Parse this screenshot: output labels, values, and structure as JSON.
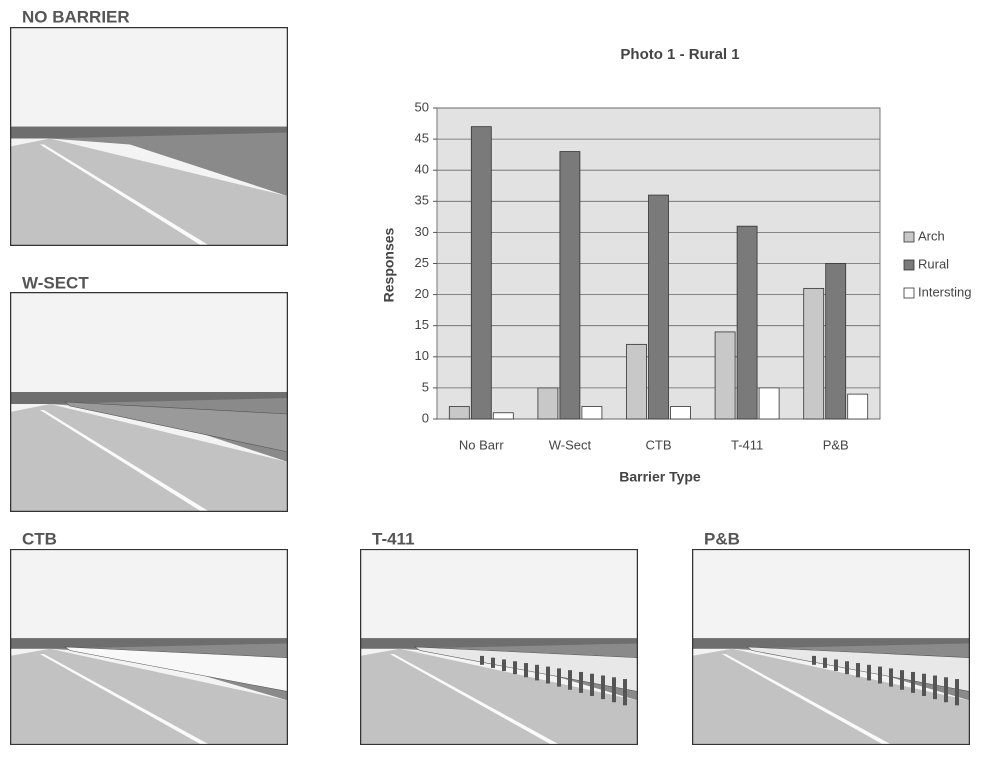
{
  "photos": [
    {
      "label": "NO BARRIER"
    },
    {
      "label": "W-SECT"
    },
    {
      "label": "CTB"
    },
    {
      "label": "T-411"
    },
    {
      "label": "P&B"
    }
  ],
  "chart_data": {
    "type": "bar",
    "title": "Photo 1 - Rural 1",
    "x_label": "Barrier Type",
    "y_label": "Responses",
    "categories": [
      "No Barr",
      "W-Sect",
      "CTB",
      "T-411",
      "P&B"
    ],
    "series": [
      {
        "name": "Arch",
        "color": "#c8c8c8",
        "values": [
          2,
          5,
          12,
          14,
          21
        ]
      },
      {
        "name": "Rural",
        "color": "#7a7a7a",
        "values": [
          47,
          43,
          36,
          31,
          25
        ]
      },
      {
        "name": "Intersting",
        "color": "#ffffff",
        "values": [
          1,
          2,
          2,
          5,
          4
        ]
      }
    ],
    "ylim": [
      0,
      50
    ],
    "yticks": [
      0,
      5,
      10,
      15,
      20,
      25,
      30,
      35,
      40,
      45,
      50
    ],
    "grid": true,
    "legend": "right"
  }
}
